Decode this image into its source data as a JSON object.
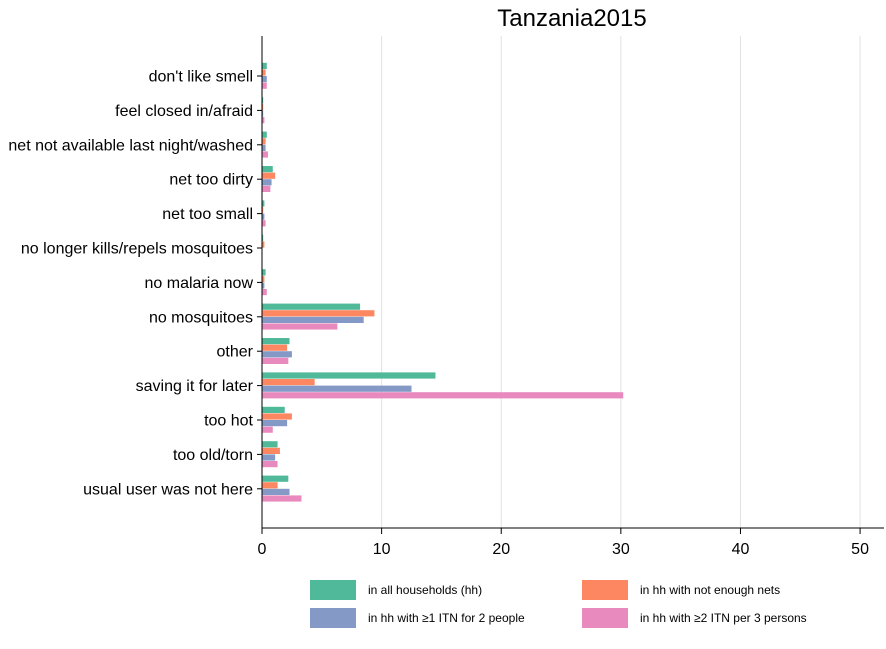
{
  "chart_data": {
    "type": "bar",
    "orientation": "horizontal",
    "title": "Tanzania2015",
    "xlabel": "",
    "ylabel": "",
    "xlim": [
      0,
      52
    ],
    "xticks": [
      0,
      10,
      20,
      30,
      40,
      50
    ],
    "grid": "vertical",
    "legend_position": "bottom",
    "categories": [
      "don't like smell",
      "feel closed in/afraid",
      "net not available last night/washed",
      "net too dirty",
      "net too small",
      "no longer kills/repels mosquitoes",
      "no malaria now",
      "no mosquitoes",
      "other",
      "saving it for later",
      "too hot",
      "too old/torn",
      "usual user was not here"
    ],
    "series": [
      {
        "name": "in all households (hh)",
        "color": "#4fb99a",
        "values": [
          0.4,
          0.1,
          0.4,
          0.9,
          0.2,
          0.1,
          0.3,
          8.2,
          2.3,
          14.5,
          1.9,
          1.3,
          2.2
        ]
      },
      {
        "name": "in hh with not enough nets",
        "color": "#fc8761",
        "values": [
          0.3,
          0.1,
          0.3,
          1.1,
          0.1,
          0.2,
          0.2,
          9.4,
          2.1,
          4.4,
          2.5,
          1.5,
          1.3
        ]
      },
      {
        "name": "in hh with ≥1 ITN for 2 people",
        "color": "#8499c6",
        "values": [
          0.4,
          0.1,
          0.3,
          0.8,
          0.2,
          0.0,
          0.2,
          8.5,
          2.5,
          12.5,
          2.1,
          1.1,
          2.3
        ]
      },
      {
        "name": "in hh with ≥2 ITN per 3 persons",
        "color": "#e98abf",
        "values": [
          0.4,
          0.2,
          0.5,
          0.7,
          0.3,
          0.0,
          0.4,
          6.3,
          2.2,
          30.2,
          0.9,
          1.3,
          3.3
        ]
      }
    ]
  }
}
